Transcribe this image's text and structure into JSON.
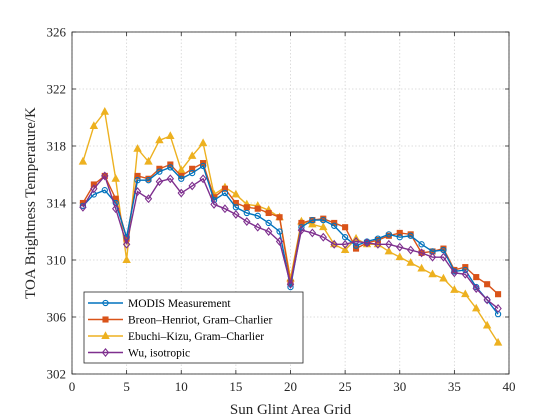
{
  "chart_data": {
    "type": "line",
    "title": "",
    "xlabel": "Sun Glint Area Grid",
    "ylabel": "TOA Brightness Temperature/K",
    "xlim": [
      0,
      40
    ],
    "ylim": [
      302,
      326
    ],
    "xticks": [
      0,
      5,
      10,
      15,
      20,
      25,
      30,
      35,
      40
    ],
    "yticks": [
      302,
      306,
      310,
      314,
      318,
      322,
      326
    ],
    "grid": true,
    "legend_position": "bottom-left",
    "x": [
      1,
      2,
      3,
      4,
      5,
      6,
      7,
      8,
      9,
      10,
      11,
      12,
      13,
      14,
      15,
      16,
      17,
      18,
      19,
      20,
      21,
      22,
      23,
      24,
      25,
      26,
      27,
      28,
      29,
      30,
      31,
      32,
      33,
      34,
      35,
      36,
      37,
      38,
      39
    ],
    "series": [
      {
        "name": "MODIS Measurement",
        "color": "#0072BD",
        "marker": "circle",
        "values": [
          313.8,
          314.6,
          314.9,
          314.0,
          311.6,
          315.6,
          315.6,
          316.2,
          316.5,
          315.7,
          316.1,
          316.6,
          314.2,
          314.7,
          313.7,
          313.3,
          313.1,
          312.6,
          312.0,
          308.1,
          312.3,
          312.8,
          312.8,
          312.4,
          311.6,
          311.0,
          311.3,
          311.5,
          311.8,
          311.6,
          311.7,
          311.1,
          310.6,
          310.7,
          309.2,
          309.3,
          308.1,
          307.2,
          306.2
        ]
      },
      {
        "name": "Breon–Henriot, Gram–Charlier",
        "color": "#D95319",
        "marker": "square",
        "values": [
          314.0,
          315.3,
          315.9,
          314.3,
          311.5,
          315.9,
          315.7,
          316.4,
          316.7,
          315.9,
          316.4,
          316.8,
          314.4,
          315.0,
          314.0,
          313.7,
          313.6,
          313.3,
          313.0,
          308.4,
          312.6,
          312.8,
          312.9,
          312.6,
          312.3,
          310.8,
          311.2,
          311.4,
          311.7,
          311.9,
          311.8,
          310.5,
          310.6,
          310.8,
          309.3,
          309.5,
          308.8,
          308.3,
          307.6
        ]
      },
      {
        "name": "Ebuchi–Kizu, Gram–Charlier",
        "color": "#EDB120",
        "marker": "triangle",
        "values": [
          316.9,
          319.4,
          320.4,
          315.7,
          310.0,
          317.8,
          316.9,
          318.4,
          318.7,
          316.3,
          317.3,
          318.2,
          314.6,
          315.1,
          314.6,
          313.9,
          313.8,
          313.5,
          313.0,
          308.7,
          312.7,
          312.5,
          312.3,
          311.1,
          310.7,
          311.5,
          311.1,
          311.1,
          310.6,
          310.2,
          309.8,
          309.4,
          309.0,
          308.7,
          307.9,
          307.6,
          306.6,
          305.4,
          304.2
        ]
      },
      {
        "name": "Wu, isotropic",
        "color": "#7E2F8E",
        "marker": "diamond",
        "values": [
          313.7,
          315.0,
          315.9,
          313.6,
          311.1,
          314.8,
          314.3,
          315.5,
          315.7,
          314.7,
          315.2,
          315.7,
          313.9,
          313.6,
          313.2,
          312.7,
          312.3,
          312.0,
          311.3,
          308.3,
          312.1,
          311.9,
          311.6,
          311.1,
          311.1,
          311.3,
          311.2,
          311.1,
          311.1,
          310.9,
          310.7,
          310.5,
          310.2,
          310.2,
          309.1,
          309.0,
          308.0,
          307.2,
          306.6
        ]
      }
    ]
  }
}
